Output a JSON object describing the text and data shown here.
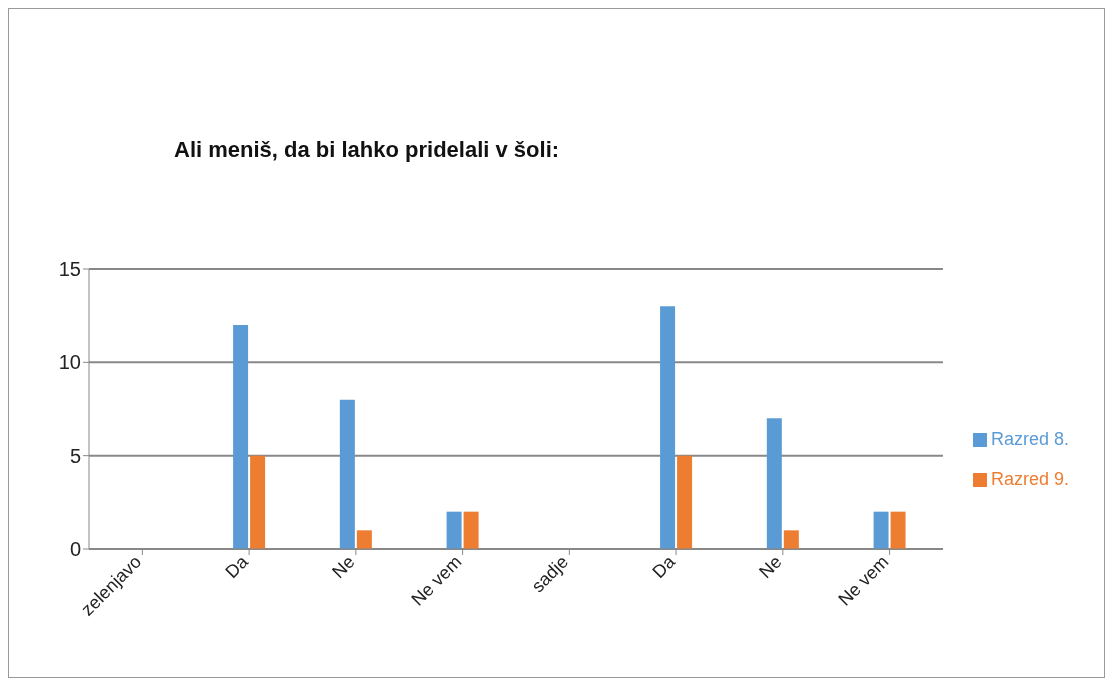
{
  "chart_data": {
    "type": "bar",
    "title": "Ali meniš, da bi lahko pridelali v šoli:",
    "categories": [
      "zelenjavo",
      "Da",
      "Ne",
      "Ne vem",
      "sadje",
      "Da",
      "Ne",
      "Ne vem"
    ],
    "series": [
      {
        "name": "Razred 8.",
        "color": "#5b9bd5",
        "values": [
          null,
          12,
          8,
          2,
          null,
          13,
          7,
          2
        ]
      },
      {
        "name": "Razred 9.",
        "color": "#ed7d31",
        "values": [
          null,
          5,
          1,
          2,
          null,
          5,
          1,
          2
        ]
      }
    ],
    "ylim": [
      0,
      15
    ],
    "yticks": [
      0,
      5,
      10,
      15
    ],
    "grid": "y",
    "legend": "right"
  }
}
